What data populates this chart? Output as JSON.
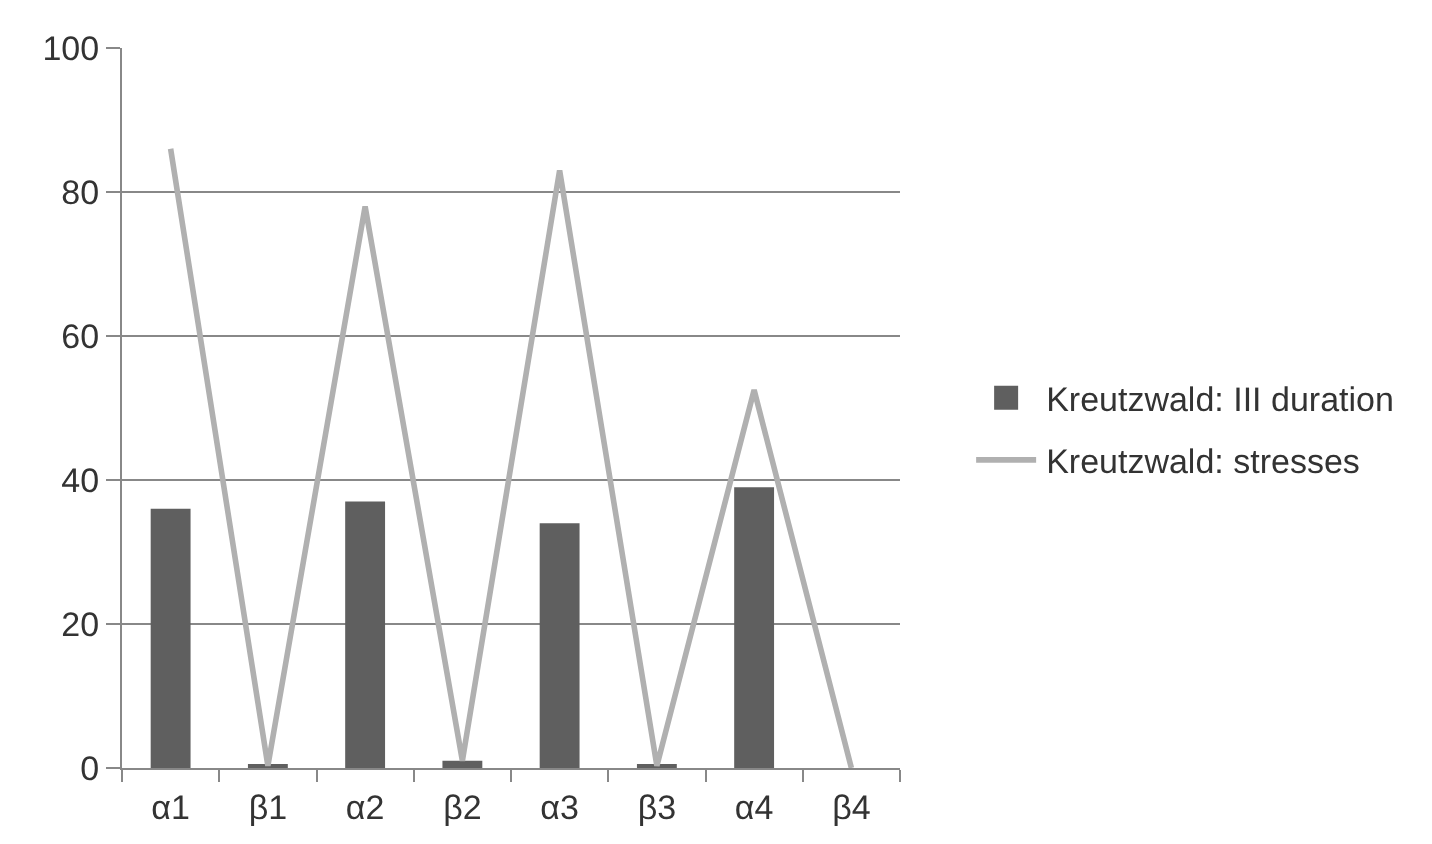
{
  "chart_data": {
    "type": "bar",
    "categories": [
      "α1",
      "β1",
      "α2",
      "β2",
      "α3",
      "β3",
      "α4",
      "β4"
    ],
    "series": [
      {
        "name": "Kreutzwald: III duration",
        "color": "#5f5f5f",
        "values": [
          36,
          0.3,
          37,
          1,
          34,
          0.3,
          39,
          0
        ]
      },
      {
        "name": "Kreutzwald: stresses",
        "type": "line",
        "color": "#b0b0b0",
        "values": [
          86,
          0.3,
          78,
          1,
          83,
          0.3,
          52.5,
          0
        ]
      }
    ],
    "ylim": [
      0,
      100
    ],
    "yticks": [
      0,
      20,
      40,
      60,
      80,
      100
    ],
    "grid": "y",
    "legend": "right",
    "marker": "none",
    "line_style": "solid"
  }
}
